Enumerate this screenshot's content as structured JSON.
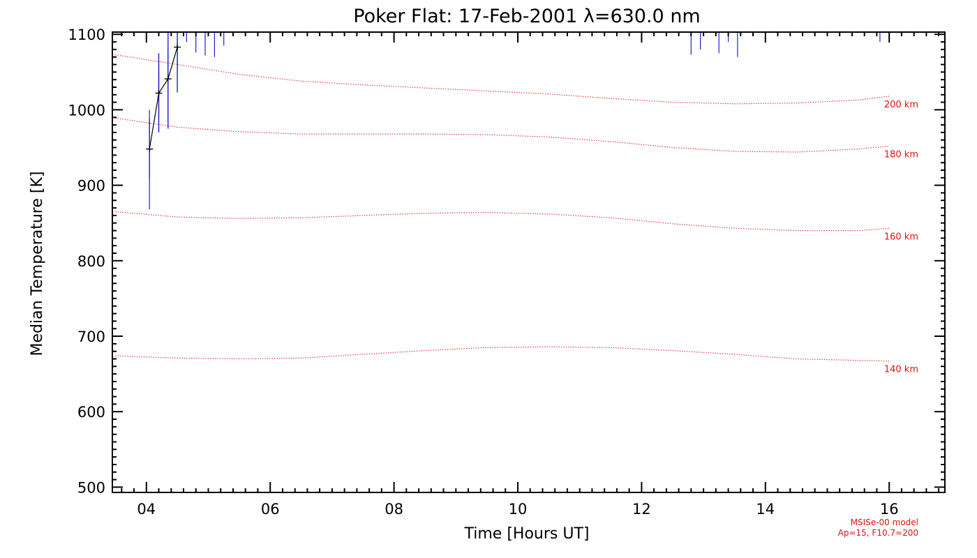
{
  "chart_data": {
    "type": "line",
    "title": "Poker Flat: 17-Feb-2001 λ=630.0 nm",
    "xlabel": "Time [Hours UT]",
    "ylabel": "Median Temperature [K]",
    "xlim": [
      3.45,
      16.9
    ],
    "ylim": [
      493,
      1103
    ],
    "x_ticks": [
      4,
      6,
      8,
      10,
      12,
      14,
      16
    ],
    "x_tick_labels": [
      "04",
      "06",
      "08",
      "10",
      "12",
      "14",
      "16"
    ],
    "y_ticks": [
      500,
      600,
      700,
      800,
      900,
      1000,
      1100
    ],
    "y_tick_labels": [
      "500",
      "600",
      "700",
      "800",
      "900",
      "1000",
      "1100"
    ],
    "grid": false,
    "measured": {
      "name": "Median temperature",
      "color": "#000000",
      "error_color": "#2020d0",
      "x": [
        4.05,
        4.2,
        4.35,
        4.5
      ],
      "y": [
        948,
        1022,
        1041,
        1083
      ],
      "err_low": [
        908,
        970,
        975,
        1023
      ],
      "err_high": [
        988,
        1075,
        1103,
        1103
      ]
    },
    "error_bars_only": {
      "color": "#2020d0",
      "x": [
        4.05,
        4.2,
        4.35,
        4.5,
        4.65,
        4.8,
        4.95,
        5.1,
        5.25,
        12.8,
        12.95,
        13.25,
        13.4,
        13.55,
        15.85
      ],
      "low": [
        868,
        990,
        985,
        1050,
        1090,
        1076,
        1072,
        1070,
        1085,
        1073,
        1080,
        1075,
        1090,
        1070,
        1090
      ],
      "high": [
        1000,
        1060,
        1080,
        1103,
        1103,
        1103,
        1103,
        1103,
        1103,
        1103,
        1103,
        1103,
        1103,
        1103,
        1103
      ]
    },
    "model_series": [
      {
        "name": "140 km",
        "color": "#e01010",
        "x": [
          3.5,
          4.5,
          5.5,
          6.5,
          7.5,
          8.5,
          9.5,
          10.5,
          11.5,
          12.5,
          13.5,
          14.5,
          15.5,
          16.0
        ],
        "values": [
          674,
          671,
          670,
          671,
          676,
          681,
          685,
          686,
          685,
          681,
          676,
          670,
          668,
          667
        ]
      },
      {
        "name": "160 km",
        "color": "#e01010",
        "x": [
          3.5,
          4.5,
          5.5,
          6.5,
          7.5,
          8.5,
          9.5,
          10.5,
          11.5,
          12.5,
          13.5,
          14.5,
          15.5,
          16.0
        ],
        "values": [
          865,
          858,
          856,
          857,
          860,
          863,
          864,
          862,
          857,
          849,
          843,
          840,
          840,
          843
        ]
      },
      {
        "name": "180 km",
        "color": "#e01010",
        "x": [
          3.5,
          4.5,
          5.5,
          6.5,
          7.5,
          8.5,
          9.5,
          10.5,
          11.5,
          12.5,
          13.5,
          14.5,
          15.5,
          16.0
        ],
        "values": [
          989,
          977,
          971,
          968,
          968,
          968,
          967,
          964,
          958,
          950,
          945,
          944,
          948,
          952
        ]
      },
      {
        "name": "200 km",
        "color": "#e01010",
        "x": [
          3.5,
          4.5,
          5.5,
          6.5,
          7.5,
          8.5,
          9.5,
          10.5,
          11.5,
          12.5,
          13.5,
          14.5,
          15.5,
          16.0
        ],
        "values": [
          1073,
          1060,
          1047,
          1038,
          1033,
          1029,
          1025,
          1021,
          1015,
          1010,
          1008,
          1009,
          1013,
          1018
        ]
      }
    ],
    "model_labels": [
      "200 km",
      "180 km",
      "160 km",
      "140 km"
    ],
    "model_note": [
      "MSISe-00 model",
      "Ap=15, F10.7=200"
    ]
  }
}
